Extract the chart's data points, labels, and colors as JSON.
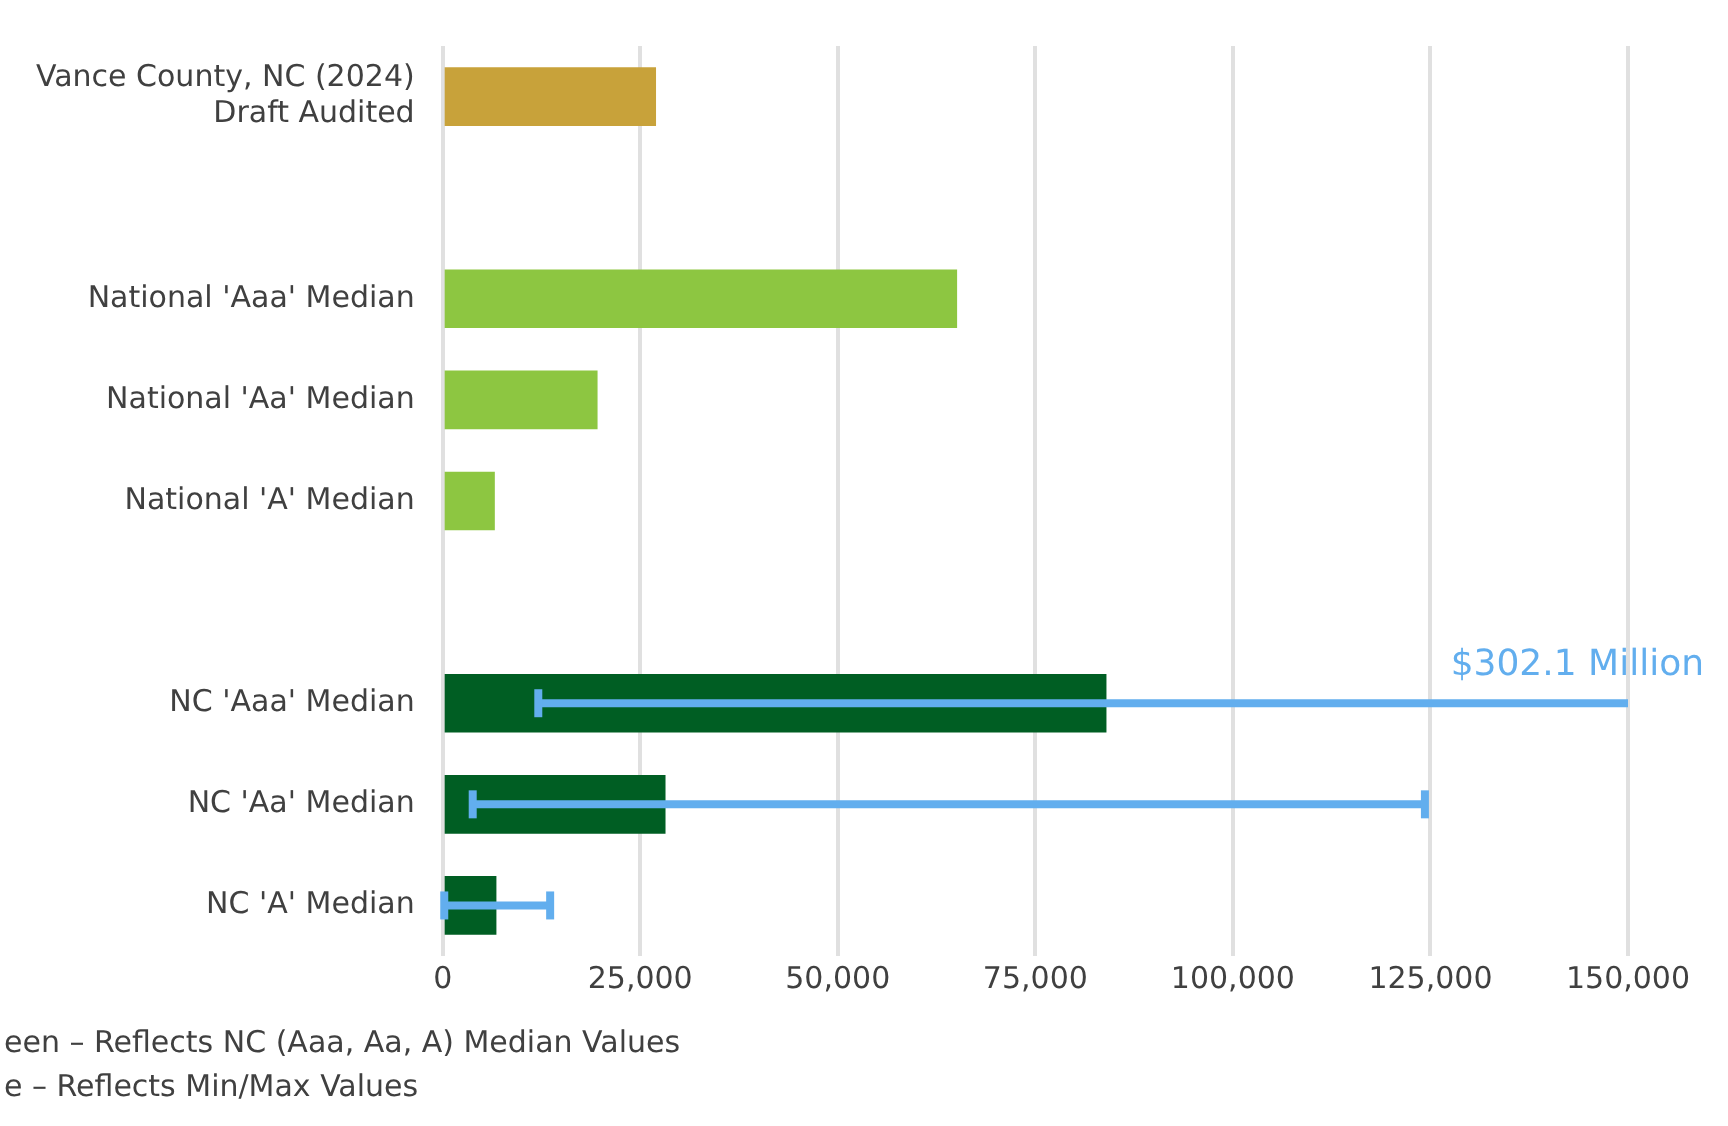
{
  "chart_data": {
    "type": "bar",
    "orientation": "horizontal",
    "categories": [
      "Vance County, NC (2024)\nDraft Audited",
      null,
      "National 'Aaa' Median",
      "National 'Aa' Median",
      "National 'A' Median",
      null,
      "NC 'Aaa' Median",
      "NC 'Aa' Median",
      "NC 'A' Median"
    ],
    "values": [
      27000,
      null,
      65100,
      19600,
      6600,
      null,
      84000,
      28200,
      6800
    ],
    "colors": [
      "#c8a23a",
      "#8dc641",
      "#8dc641",
      "#8dc641",
      "#8dc641",
      "#005e23",
      "#005e23",
      "#005e23",
      "#005e23"
    ],
    "errors": [
      null,
      null,
      null,
      null,
      null,
      null,
      [
        12100,
        150000
      ],
      [
        3800,
        124300
      ],
      [
        200,
        13600
      ]
    ],
    "xlim": [
      0,
      150000
    ],
    "xticks": [
      0,
      {
        "value": 25000,
        "label": "25,000"
      },
      {
        "value": 50000,
        "label": "50,000"
      },
      {
        "value": 75000,
        "label": "75,000"
      },
      {
        "value": 100000,
        "label": "100,000"
      },
      {
        "value": 125000,
        "label": "125,000"
      },
      {
        "value": 150000,
        "label": "150,000"
      }
    ],
    "grid": "x",
    "legend": false,
    "annotations": [
      "$302.1 Million",
      "een – Reflects NC (Aaa, Aa, A) Median Values",
      "e – Reflects Min/Max Values"
    ]
  }
}
